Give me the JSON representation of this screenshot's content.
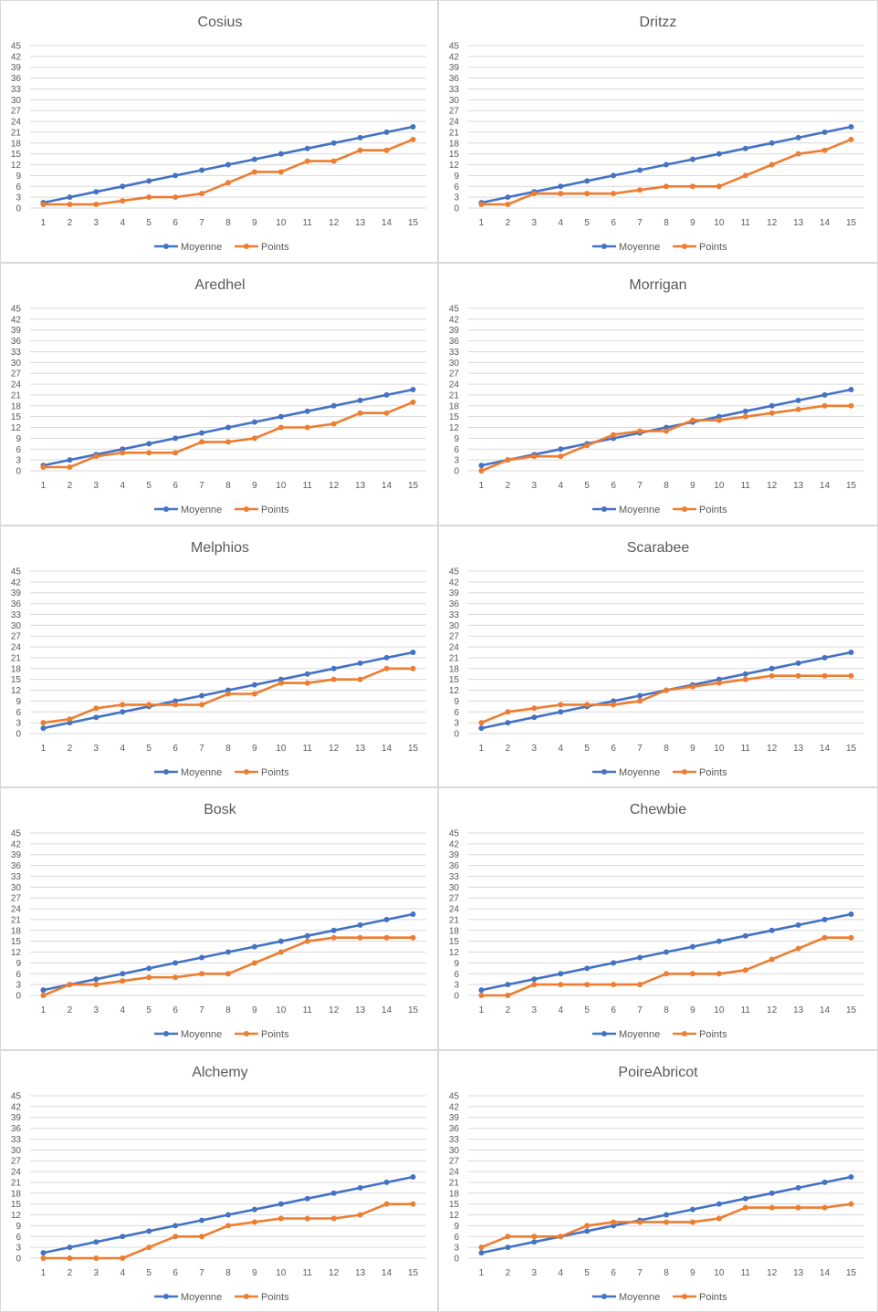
{
  "colors": {
    "moyenne": "#4472c4",
    "points": "#ed7d31",
    "grid": "#d9d9d9",
    "text": "#595959"
  },
  "legend": {
    "moyenne": "Moyenne",
    "points": "Points"
  },
  "chart_data": [
    {
      "type": "line",
      "title": "Cosius",
      "x": [
        1,
        2,
        3,
        4,
        5,
        6,
        7,
        8,
        9,
        10,
        11,
        12,
        13,
        14,
        15
      ],
      "yticks": [
        0,
        3,
        6,
        9,
        12,
        15,
        18,
        21,
        24,
        27,
        30,
        33,
        36,
        39,
        42,
        45
      ],
      "ylim": [
        0,
        45
      ],
      "grid": true,
      "legend_position": "bottom",
      "series": [
        {
          "name": "Moyenne",
          "values": [
            1.5,
            3,
            4.5,
            6,
            7.5,
            9,
            10.5,
            12,
            13.5,
            15,
            16.5,
            18,
            19.5,
            21,
            22.5
          ]
        },
        {
          "name": "Points",
          "values": [
            1,
            1,
            1,
            2,
            3,
            3,
            4,
            7,
            10,
            10,
            13,
            13,
            16,
            16,
            19
          ]
        }
      ]
    },
    {
      "type": "line",
      "title": "Dritzz",
      "x": [
        1,
        2,
        3,
        4,
        5,
        6,
        7,
        8,
        9,
        10,
        11,
        12,
        13,
        14,
        15
      ],
      "yticks": [
        0,
        3,
        6,
        9,
        12,
        15,
        18,
        21,
        24,
        27,
        30,
        33,
        36,
        39,
        42,
        45
      ],
      "ylim": [
        0,
        45
      ],
      "grid": true,
      "legend_position": "bottom",
      "series": [
        {
          "name": "Moyenne",
          "values": [
            1.5,
            3,
            4.5,
            6,
            7.5,
            9,
            10.5,
            12,
            13.5,
            15,
            16.5,
            18,
            19.5,
            21,
            22.5
          ]
        },
        {
          "name": "Points",
          "values": [
            1,
            1,
            4,
            4,
            4,
            4,
            5,
            6,
            6,
            6,
            9,
            12,
            15,
            16,
            19
          ]
        }
      ]
    },
    {
      "type": "line",
      "title": "Aredhel",
      "x": [
        1,
        2,
        3,
        4,
        5,
        6,
        7,
        8,
        9,
        10,
        11,
        12,
        13,
        14,
        15
      ],
      "yticks": [
        0,
        3,
        6,
        9,
        12,
        15,
        18,
        21,
        24,
        27,
        30,
        33,
        36,
        39,
        42,
        45
      ],
      "ylim": [
        0,
        45
      ],
      "grid": true,
      "legend_position": "bottom",
      "series": [
        {
          "name": "Moyenne",
          "values": [
            1.5,
            3,
            4.5,
            6,
            7.5,
            9,
            10.5,
            12,
            13.5,
            15,
            16.5,
            18,
            19.5,
            21,
            22.5
          ]
        },
        {
          "name": "Points",
          "values": [
            1,
            1,
            4,
            5,
            5,
            5,
            8,
            8,
            9,
            12,
            12,
            13,
            16,
            16,
            19
          ]
        }
      ]
    },
    {
      "type": "line",
      "title": "Morrigan",
      "x": [
        1,
        2,
        3,
        4,
        5,
        6,
        7,
        8,
        9,
        10,
        11,
        12,
        13,
        14,
        15
      ],
      "yticks": [
        0,
        3,
        6,
        9,
        12,
        15,
        18,
        21,
        24,
        27,
        30,
        33,
        36,
        39,
        42,
        45
      ],
      "ylim": [
        0,
        45
      ],
      "grid": true,
      "legend_position": "bottom",
      "series": [
        {
          "name": "Moyenne",
          "values": [
            1.5,
            3,
            4.5,
            6,
            7.5,
            9,
            10.5,
            12,
            13.5,
            15,
            16.5,
            18,
            19.5,
            21,
            22.5
          ]
        },
        {
          "name": "Points",
          "values": [
            0,
            3,
            4,
            4,
            7,
            10,
            11,
            11,
            14,
            14,
            15,
            16,
            17,
            18,
            18
          ]
        }
      ]
    },
    {
      "type": "line",
      "title": "Melphios",
      "x": [
        1,
        2,
        3,
        4,
        5,
        6,
        7,
        8,
        9,
        10,
        11,
        12,
        13,
        14,
        15
      ],
      "yticks": [
        0,
        3,
        6,
        9,
        12,
        15,
        18,
        21,
        24,
        27,
        30,
        33,
        36,
        39,
        42,
        45
      ],
      "ylim": [
        0,
        45
      ],
      "grid": true,
      "legend_position": "bottom",
      "series": [
        {
          "name": "Moyenne",
          "values": [
            1.5,
            3,
            4.5,
            6,
            7.5,
            9,
            10.5,
            12,
            13.5,
            15,
            16.5,
            18,
            19.5,
            21,
            22.5
          ]
        },
        {
          "name": "Points",
          "values": [
            3,
            4,
            7,
            8,
            8,
            8,
            8,
            11,
            11,
            14,
            14,
            15,
            15,
            18,
            18
          ]
        }
      ]
    },
    {
      "type": "line",
      "title": "Scarabee",
      "x": [
        1,
        2,
        3,
        4,
        5,
        6,
        7,
        8,
        9,
        10,
        11,
        12,
        13,
        14,
        15
      ],
      "yticks": [
        0,
        3,
        6,
        9,
        12,
        15,
        18,
        21,
        24,
        27,
        30,
        33,
        36,
        39,
        42,
        45
      ],
      "ylim": [
        0,
        45
      ],
      "grid": true,
      "legend_position": "bottom",
      "series": [
        {
          "name": "Moyenne",
          "values": [
            1.5,
            3,
            4.5,
            6,
            7.5,
            9,
            10.5,
            12,
            13.5,
            15,
            16.5,
            18,
            19.5,
            21,
            22.5
          ]
        },
        {
          "name": "Points",
          "values": [
            3,
            6,
            7,
            8,
            8,
            8,
            9,
            12,
            13,
            14,
            15,
            16,
            16,
            16,
            16
          ]
        }
      ]
    },
    {
      "type": "line",
      "title": "Bosk",
      "x": [
        1,
        2,
        3,
        4,
        5,
        6,
        7,
        8,
        9,
        10,
        11,
        12,
        13,
        14,
        15
      ],
      "yticks": [
        0,
        3,
        6,
        9,
        12,
        15,
        18,
        21,
        24,
        27,
        30,
        33,
        36,
        39,
        42,
        45
      ],
      "ylim": [
        0,
        45
      ],
      "grid": true,
      "legend_position": "bottom",
      "series": [
        {
          "name": "Moyenne",
          "values": [
            1.5,
            3,
            4.5,
            6,
            7.5,
            9,
            10.5,
            12,
            13.5,
            15,
            16.5,
            18,
            19.5,
            21,
            22.5
          ]
        },
        {
          "name": "Points",
          "values": [
            0,
            3,
            3,
            4,
            5,
            5,
            6,
            6,
            9,
            12,
            15,
            16,
            16,
            16,
            16
          ]
        }
      ]
    },
    {
      "type": "line",
      "title": "Chewbie",
      "x": [
        1,
        2,
        3,
        4,
        5,
        6,
        7,
        8,
        9,
        10,
        11,
        12,
        13,
        14,
        15
      ],
      "yticks": [
        0,
        3,
        6,
        9,
        12,
        15,
        18,
        21,
        24,
        27,
        30,
        33,
        36,
        39,
        42,
        45
      ],
      "ylim": [
        0,
        45
      ],
      "grid": true,
      "legend_position": "bottom",
      "series": [
        {
          "name": "Moyenne",
          "values": [
            1.5,
            3,
            4.5,
            6,
            7.5,
            9,
            10.5,
            12,
            13.5,
            15,
            16.5,
            18,
            19.5,
            21,
            22.5
          ]
        },
        {
          "name": "Points",
          "values": [
            0,
            0,
            3,
            3,
            3,
            3,
            3,
            6,
            6,
            6,
            7,
            10,
            13,
            16,
            16
          ]
        }
      ]
    },
    {
      "type": "line",
      "title": "Alchemy",
      "x": [
        1,
        2,
        3,
        4,
        5,
        6,
        7,
        8,
        9,
        10,
        11,
        12,
        13,
        14,
        15
      ],
      "yticks": [
        0,
        3,
        6,
        9,
        12,
        15,
        18,
        21,
        24,
        27,
        30,
        33,
        36,
        39,
        42,
        45
      ],
      "ylim": [
        0,
        45
      ],
      "grid": true,
      "legend_position": "bottom",
      "series": [
        {
          "name": "Moyenne",
          "values": [
            1.5,
            3,
            4.5,
            6,
            7.5,
            9,
            10.5,
            12,
            13.5,
            15,
            16.5,
            18,
            19.5,
            21,
            22.5
          ]
        },
        {
          "name": "Points",
          "values": [
            0,
            0,
            0,
            0,
            3,
            6,
            6,
            9,
            10,
            11,
            11,
            11,
            12,
            15,
            15
          ]
        }
      ]
    },
    {
      "type": "line",
      "title": "PoireAbricot",
      "x": [
        1,
        2,
        3,
        4,
        5,
        6,
        7,
        8,
        9,
        10,
        11,
        12,
        13,
        14,
        15
      ],
      "yticks": [
        0,
        3,
        6,
        9,
        12,
        15,
        18,
        21,
        24,
        27,
        30,
        33,
        36,
        39,
        42,
        45
      ],
      "ylim": [
        0,
        45
      ],
      "grid": true,
      "legend_position": "bottom",
      "series": [
        {
          "name": "Moyenne",
          "values": [
            1.5,
            3,
            4.5,
            6,
            7.5,
            9,
            10.5,
            12,
            13.5,
            15,
            16.5,
            18,
            19.5,
            21,
            22.5
          ]
        },
        {
          "name": "Points",
          "values": [
            3,
            6,
            6,
            6,
            9,
            10,
            10,
            10,
            10,
            11,
            14,
            14,
            14,
            14,
            15
          ]
        }
      ]
    }
  ]
}
